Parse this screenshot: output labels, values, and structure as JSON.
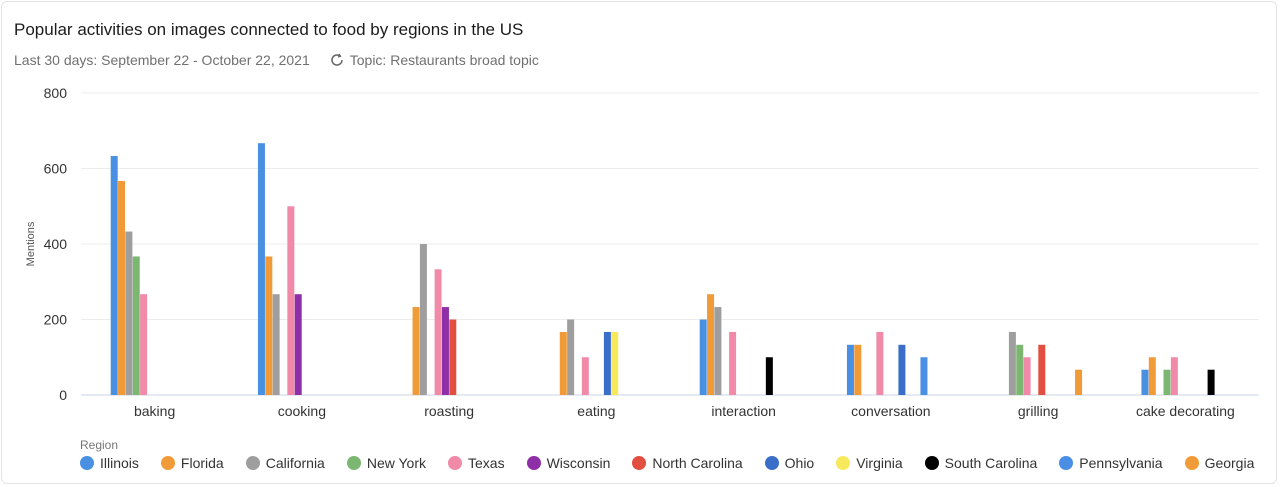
{
  "title": "Popular activities on images connected to food by regions in the US",
  "subtitle": {
    "period": "Last 30 days: September 22 - October 22, 2021",
    "topic": "Topic: Restaurants broad topic",
    "topic_icon": "refresh-circle-icon"
  },
  "chart_data": {
    "type": "bar",
    "title": "Popular activities on images connected to food by regions in the US",
    "ylabel": "Mentions",
    "xlabel": "",
    "ylim": [
      0,
      800
    ],
    "yticks": [
      0,
      200,
      400,
      600,
      800
    ],
    "grid": true,
    "legend_title": "Region",
    "legend_position": "bottom-left",
    "categories": [
      "baking",
      "cooking",
      "roasting",
      "eating",
      "interaction",
      "conversation",
      "grilling",
      "cake decorating"
    ],
    "series": [
      {
        "name": "Illinois",
        "color": "#4a90e2",
        "values": [
          633,
          667,
          null,
          null,
          200,
          133,
          null,
          67
        ]
      },
      {
        "name": "Florida",
        "color": "#f19a38",
        "values": [
          567,
          367,
          233,
          167,
          267,
          133,
          null,
          100
        ]
      },
      {
        "name": "California",
        "color": "#9e9e9e",
        "values": [
          433,
          267,
          400,
          200,
          233,
          null,
          167,
          null
        ]
      },
      {
        "name": "New York",
        "color": "#7cb772",
        "values": [
          367,
          null,
          null,
          null,
          null,
          null,
          133,
          67
        ]
      },
      {
        "name": "Texas",
        "color": "#f08aa8",
        "values": [
          267,
          500,
          333,
          100,
          167,
          167,
          100,
          100
        ]
      },
      {
        "name": "Wisconsin",
        "color": "#8e2fa8",
        "values": [
          null,
          267,
          233,
          null,
          null,
          null,
          null,
          null
        ]
      },
      {
        "name": "North Carolina",
        "color": "#e24f40",
        "values": [
          null,
          null,
          200,
          null,
          null,
          null,
          133,
          null
        ]
      },
      {
        "name": "Ohio",
        "color": "#3a6ec8",
        "values": [
          null,
          null,
          null,
          167,
          null,
          133,
          null,
          null
        ]
      },
      {
        "name": "Virginia",
        "color": "#f8e85c",
        "values": [
          null,
          null,
          null,
          167,
          null,
          null,
          null,
          null
        ]
      },
      {
        "name": "South Carolina",
        "color": "#000000",
        "values": [
          null,
          null,
          null,
          null,
          100,
          null,
          null,
          67
        ]
      },
      {
        "name": "Pennsylvania",
        "color": "#4a8ee6",
        "values": [
          null,
          null,
          null,
          null,
          null,
          100,
          null,
          null
        ]
      },
      {
        "name": "Georgia",
        "color": "#f19a38",
        "values": [
          null,
          null,
          null,
          null,
          null,
          null,
          67,
          null
        ]
      }
    ]
  }
}
